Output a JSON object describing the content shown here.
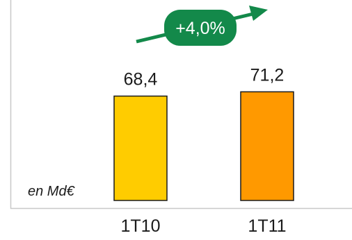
{
  "chart_data": {
    "type": "bar",
    "categories": [
      "1T10",
      "1T11"
    ],
    "values": [
      68.4,
      71.2
    ],
    "value_labels": [
      "68,4",
      "71,2"
    ],
    "unit": "en Md€",
    "growth_badge": "+4,0%",
    "bar_colors": [
      "#ffcc00",
      "#ff9900"
    ],
    "badge_color": "#13894a",
    "frame_color": "#c8c8c8"
  }
}
